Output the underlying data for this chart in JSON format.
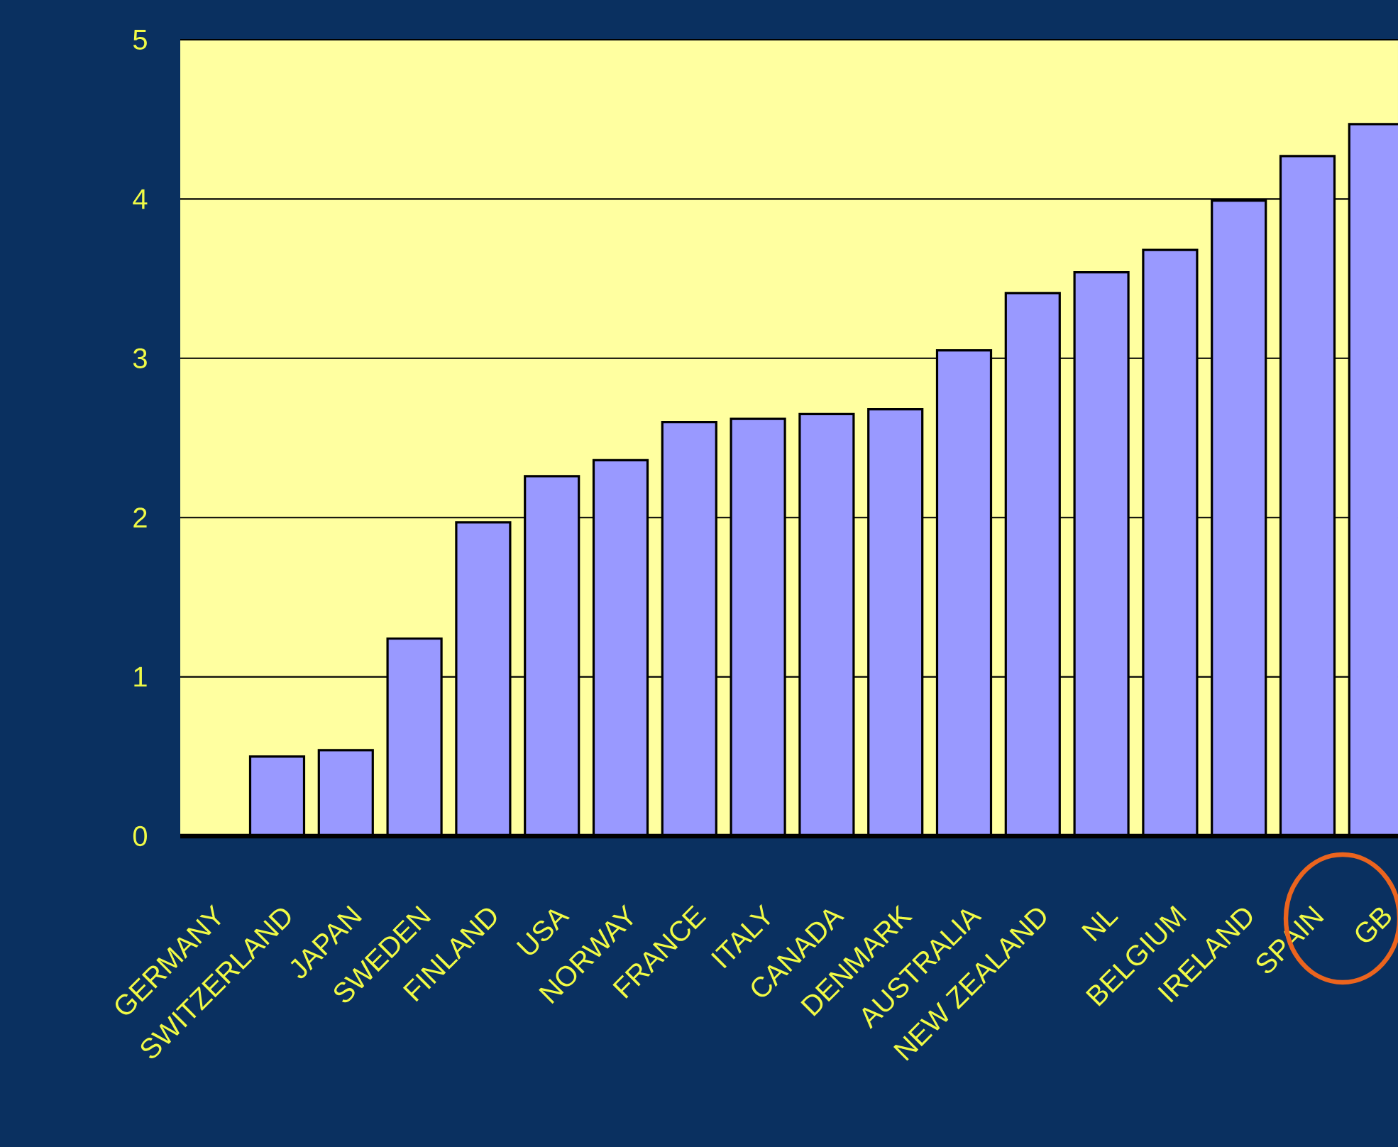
{
  "chart_data": {
    "type": "bar",
    "categories": [
      "GERMANY",
      "SWITZERLAND",
      "JAPAN",
      "SWEDEN",
      "FINLAND",
      "USA",
      "NORWAY",
      "FRANCE",
      "ITALY",
      "CANADA",
      "DENMARK",
      "AUSTRALIA",
      "NEW ZEALAND",
      "NL",
      "BELGIUM",
      "IRELAND",
      "SPAIN",
      "GB"
    ],
    "values": [
      0,
      0.5,
      0.54,
      1.24,
      1.97,
      2.26,
      2.36,
      2.6,
      2.62,
      2.65,
      2.68,
      3.05,
      3.41,
      3.54,
      3.68,
      3.99,
      4.27,
      4.47
    ],
    "color": "#9999ff",
    "ylim": [
      0,
      5
    ],
    "yticks": [
      0,
      1,
      2,
      3,
      4,
      5
    ],
    "grid": "y"
  }
}
